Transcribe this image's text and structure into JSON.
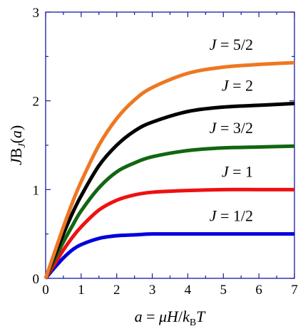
{
  "chart_data": {
    "type": "line",
    "title": "",
    "xlabel": {
      "a": "a",
      "eq": " = ",
      "mu": "μ",
      "H": "H",
      "slash": "/",
      "k": "k",
      "kB_sub": "B",
      "T": "T"
    },
    "ylabel": {
      "J": "J",
      "B": "B",
      "sub": "J",
      "arg_open": "(",
      "arg": "a",
      "arg_close": ")"
    },
    "xlim": [
      0,
      7
    ],
    "ylim": [
      0,
      3
    ],
    "x_ticks": [
      "0",
      "1",
      "2",
      "3",
      "4",
      "5",
      "6",
      "7"
    ],
    "y_ticks": [
      "0",
      "1",
      "2",
      "3"
    ],
    "grid": false,
    "legend": "none (curves labeled directly)",
    "series": [
      {
        "name": "J = 1/2",
        "J_text": "J",
        "rest_text": " = 1/2",
        "color": "#0000dd",
        "x": [
          0,
          0.25,
          0.5,
          0.75,
          1,
          1.5,
          2,
          2.5,
          3,
          4,
          5,
          6,
          7
        ],
        "values": [
          0,
          0.12,
          0.23,
          0.32,
          0.38,
          0.45,
          0.48,
          0.49,
          0.5,
          0.5,
          0.5,
          0.5,
          0.5
        ]
      },
      {
        "name": "J = 1",
        "J_text": "J",
        "rest_text": " = 1",
        "color": "#ee1111",
        "x": [
          0,
          0.25,
          0.5,
          0.75,
          1,
          1.5,
          2,
          2.5,
          3,
          4,
          5,
          6,
          7
        ],
        "values": [
          0,
          0.16,
          0.32,
          0.46,
          0.58,
          0.77,
          0.88,
          0.94,
          0.97,
          0.99,
          1.0,
          1.0,
          1.0
        ]
      },
      {
        "name": "J = 3/2",
        "J_text": "J",
        "rest_text": " = 3/2",
        "color": "#116611",
        "x": [
          0,
          0.25,
          0.5,
          0.75,
          1,
          1.5,
          2,
          2.5,
          3,
          4,
          5,
          6,
          7
        ],
        "values": [
          0,
          0.21,
          0.41,
          0.59,
          0.76,
          1.02,
          1.2,
          1.3,
          1.37,
          1.44,
          1.47,
          1.48,
          1.49
        ]
      },
      {
        "name": "J = 2",
        "J_text": "J",
        "rest_text": " = 2",
        "color": "#000000",
        "x": [
          0,
          0.25,
          0.5,
          0.75,
          1,
          1.5,
          2,
          2.5,
          3,
          4,
          5,
          6,
          7
        ],
        "values": [
          0,
          0.25,
          0.5,
          0.73,
          0.93,
          1.27,
          1.5,
          1.66,
          1.76,
          1.88,
          1.93,
          1.95,
          1.97
        ]
      },
      {
        "name": "J = 5/2",
        "J_text": "J",
        "rest_text": " = 5/2",
        "color": "#ee7722",
        "x": [
          0,
          0.25,
          0.5,
          0.75,
          1,
          1.5,
          2,
          2.5,
          3,
          4,
          5,
          6,
          7
        ],
        "values": [
          0,
          0.29,
          0.58,
          0.85,
          1.09,
          1.5,
          1.8,
          2.01,
          2.15,
          2.31,
          2.38,
          2.41,
          2.43
        ]
      }
    ]
  }
}
